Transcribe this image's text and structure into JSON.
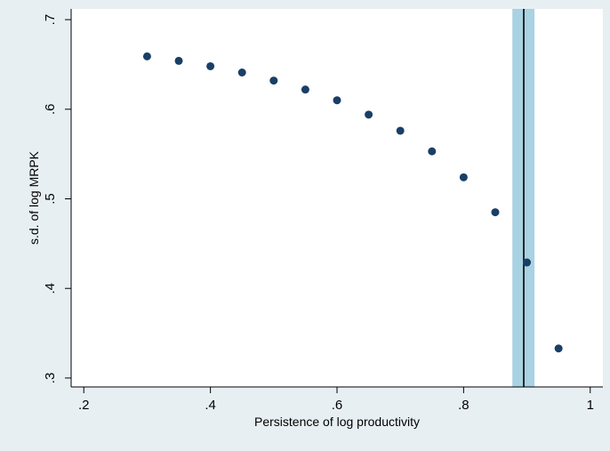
{
  "chart_data": {
    "type": "scatter",
    "title": "",
    "xlabel": "Persistence of log productivity",
    "ylabel": "s.d. of log MRPK",
    "xlim": [
      0.18,
      1.02
    ],
    "ylim": [
      0.29,
      0.712
    ],
    "x_ticks": [
      0.2,
      0.4,
      0.6,
      0.8,
      1.0
    ],
    "x_tick_labels": [
      ".2",
      ".4",
      ".6",
      ".8",
      "1"
    ],
    "y_ticks": [
      0.3,
      0.4,
      0.5,
      0.6,
      0.7
    ],
    "y_tick_labels": [
      ".3",
      ".4",
      ".5",
      ".6",
      ".7"
    ],
    "grid": "none",
    "legend": "none",
    "series": [
      {
        "x": [
          0.3,
          0.35,
          0.4,
          0.45,
          0.5,
          0.55,
          0.6,
          0.65,
          0.7,
          0.75,
          0.8,
          0.85,
          0.9,
          0.95
        ],
        "y": [
          0.659,
          0.654,
          0.648,
          0.641,
          0.632,
          0.622,
          0.61,
          0.594,
          0.576,
          0.553,
          0.524,
          0.485,
          0.429,
          0.333
        ],
        "color": "#1a3f66"
      }
    ],
    "vertical_line": {
      "x": 0.895,
      "color": "#000000"
    },
    "shaded_band": {
      "x_from": 0.877,
      "x_to": 0.912,
      "color": "#a9d2e3"
    },
    "plot_background": "#ffffff",
    "outer_background": "#e8eff3"
  }
}
